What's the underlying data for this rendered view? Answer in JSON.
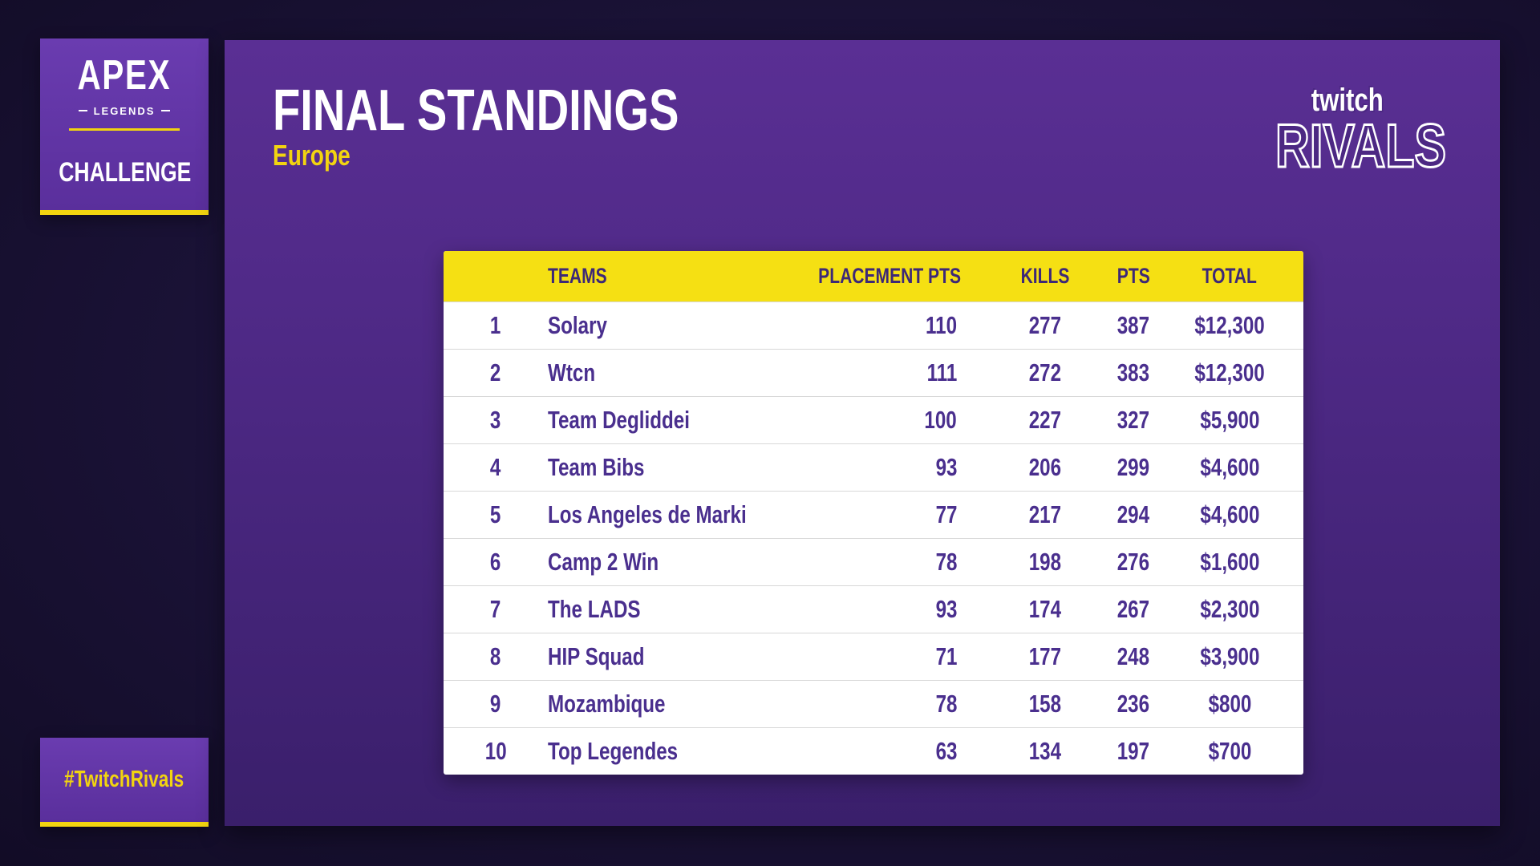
{
  "brand": {
    "apex_word": "APEX",
    "legends_word": "LEGENDS",
    "challenge_word": "CHALLENGE",
    "hashtag": "#TwitchRivals",
    "twitch_word": "twitch",
    "rivals_word": "RIVALS"
  },
  "header": {
    "title": "FINAL STANDINGS",
    "subtitle": "Europe"
  },
  "table": {
    "columns": {
      "rank": "",
      "team": "TEAMS",
      "placement_pts": "PLACEMENT PTS",
      "kills": "KILLS",
      "pts": "PTS",
      "total": "TOTAL"
    },
    "rows": [
      {
        "rank": "1",
        "team": "Solary",
        "placement_pts": "110",
        "kills": "277",
        "pts": "387",
        "total": "$12,300"
      },
      {
        "rank": "2",
        "team": "Wtcn",
        "placement_pts": "111",
        "kills": "272",
        "pts": "383",
        "total": "$12,300"
      },
      {
        "rank": "3",
        "team": "Team Degliddei",
        "placement_pts": "100",
        "kills": "227",
        "pts": "327",
        "total": "$5,900"
      },
      {
        "rank": "4",
        "team": "Team Bibs",
        "placement_pts": "93",
        "kills": "206",
        "pts": "299",
        "total": "$4,600"
      },
      {
        "rank": "5",
        "team": "Los Angeles de Marki",
        "placement_pts": "77",
        "kills": "217",
        "pts": "294",
        "total": "$4,600"
      },
      {
        "rank": "6",
        "team": "Camp 2 Win",
        "placement_pts": "78",
        "kills": "198",
        "pts": "276",
        "total": "$1,600"
      },
      {
        "rank": "7",
        "team": "The LADS",
        "placement_pts": "93",
        "kills": "174",
        "pts": "267",
        "total": "$2,300"
      },
      {
        "rank": "8",
        "team": "HIP Squad",
        "placement_pts": "71",
        "kills": "177",
        "pts": "248",
        "total": "$3,900"
      },
      {
        "rank": "9",
        "team": "Mozambique",
        "placement_pts": "78",
        "kills": "158",
        "pts": "236",
        "total": "$800"
      },
      {
        "rank": "10",
        "team": "Top Legendes",
        "placement_pts": "63",
        "kills": "134",
        "pts": "197",
        "total": "$700"
      }
    ]
  },
  "colors": {
    "accent_yellow": "#f2d410",
    "header_yellow": "#f5e013",
    "panel_purple": "#4c2883",
    "text_purple": "#4a2f8e"
  }
}
